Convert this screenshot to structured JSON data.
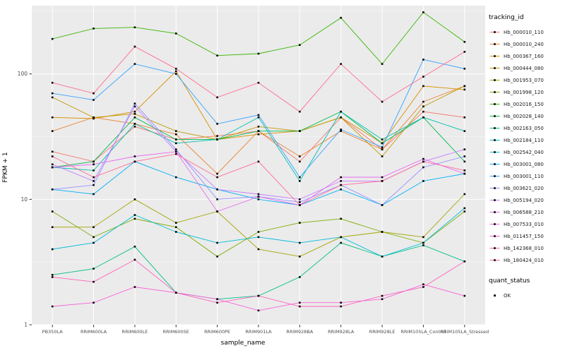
{
  "chart_data": {
    "type": "line",
    "title": "",
    "xlabel": "sample_name",
    "ylabel": "FPKM + 1",
    "legend_title": "tracking_id",
    "quant_legend": {
      "title": "quant_status",
      "items": [
        "OK"
      ]
    },
    "y_scale": "log10",
    "y_ticks": [
      1,
      10,
      100
    ],
    "y_tick_labels": [
      "1",
      "10",
      "100"
    ],
    "ylim": [
      1,
      350
    ],
    "grid": true,
    "legend_position": "right",
    "point_marker": "black-square",
    "panel_background": "#EBEBEB",
    "grid_color": "#FFFFFF",
    "categories": [
      "PB350LA",
      "RRIM600LA",
      "RRIM600LE",
      "RRIM600SE",
      "RRIM600PE",
      "RRIM901LA",
      "RRIM928BA",
      "RRIM928LA",
      "RRIM928LE",
      "RRIM105LA_Control",
      "RRIM105LA_Stressed"
    ],
    "series": [
      {
        "name": "Hb_000010_110",
        "color": "#F8766D",
        "values": [
          24,
          20,
          38,
          30,
          32,
          35,
          20,
          45,
          25,
          50,
          45
        ]
      },
      {
        "name": "Hb_000010_240",
        "color": "#EA8331",
        "values": [
          35,
          45,
          40,
          33,
          16,
          35,
          22,
          35,
          25,
          60,
          80
        ]
      },
      {
        "name": "Hb_000367_160",
        "color": "#D89000",
        "values": [
          45,
          44,
          50,
          105,
          30,
          33,
          35,
          45,
          28,
          80,
          75
        ]
      },
      {
        "name": "Hb_000444_080",
        "color": "#C09B00",
        "values": [
          65,
          45,
          48,
          35,
          30,
          38,
          35,
          45,
          22,
          55,
          80
        ]
      },
      {
        "name": "Hb_001953_070",
        "color": "#A3A500",
        "values": [
          6,
          6,
          10,
          6.5,
          8,
          4,
          3.5,
          5,
          5.5,
          5,
          11
        ]
      },
      {
        "name": "Hb_001998_120",
        "color": "#7CAE00",
        "values": [
          8,
          5,
          7,
          6,
          3.5,
          5.5,
          6.5,
          7,
          5.5,
          4.5,
          8
        ]
      },
      {
        "name": "Hb_002016_150",
        "color": "#39B600",
        "values": [
          190,
          230,
          235,
          210,
          140,
          145,
          170,
          280,
          120,
          310,
          180
        ]
      },
      {
        "name": "Hb_002028_140",
        "color": "#00BB4E",
        "values": [
          18,
          20,
          45,
          30,
          30,
          35,
          35,
          50,
          28,
          45,
          20
        ]
      },
      {
        "name": "Hb_002163_050",
        "color": "#00C087",
        "values": [
          2.5,
          2.8,
          4.2,
          1.8,
          1.6,
          1.7,
          2.4,
          4.5,
          3.5,
          4.3,
          3.2
        ]
      },
      {
        "name": "Hb_002184_110",
        "color": "#00C0AF",
        "values": [
          18,
          17,
          40,
          28,
          30,
          45,
          14,
          50,
          30,
          45,
          35
        ]
      },
      {
        "name": "Hb_002542_040",
        "color": "#00BCD8",
        "values": [
          4,
          4.5,
          7.5,
          5.5,
          4.5,
          5,
          4.5,
          5,
          3.5,
          4.5,
          8.5
        ]
      },
      {
        "name": "Hb_003001_080",
        "color": "#00B0F6",
        "values": [
          12,
          11,
          20,
          15,
          12,
          10,
          9,
          12,
          9,
          14,
          16
        ]
      },
      {
        "name": "Hb_003001_110",
        "color": "#35A2FF",
        "values": [
          70,
          62,
          120,
          100,
          40,
          47,
          15,
          36,
          26,
          130,
          110
        ]
      },
      {
        "name": "Hb_003621_020",
        "color": "#9590FF",
        "values": [
          12,
          13,
          58,
          25,
          10,
          10.5,
          9.5,
          13,
          9,
          18,
          22
        ]
      },
      {
        "name": "Hb_005194_020",
        "color": "#C77CFF",
        "values": [
          19,
          14,
          55,
          24,
          12,
          11,
          10,
          14,
          14,
          20,
          25
        ]
      },
      {
        "name": "Hb_006588_210",
        "color": "#E76BF3",
        "values": [
          18,
          19,
          22,
          24,
          8,
          10.5,
          9,
          15,
          15,
          21,
          16
        ]
      },
      {
        "name": "Hb_007533_010",
        "color": "#FA62DB",
        "values": [
          1.4,
          1.5,
          2.0,
          1.8,
          1.6,
          1.3,
          1.5,
          1.5,
          1.6,
          2.1,
          1.7
        ]
      },
      {
        "name": "Hb_011457_150",
        "color": "#FF62BC",
        "values": [
          2.4,
          2.2,
          3.3,
          1.8,
          1.5,
          1.7,
          1.4,
          1.4,
          1.7,
          2.0,
          3.2
        ]
      },
      {
        "name": "Hb_142368_010",
        "color": "#FF6A98",
        "values": [
          22,
          15,
          20,
          23,
          15,
          20,
          9,
          13,
          14,
          20,
          17
        ]
      },
      {
        "name": "Hb_180424_010",
        "color": "#FF6C91",
        "values": [
          85,
          70,
          165,
          110,
          65,
          85,
          50,
          120,
          60,
          95,
          150
        ]
      }
    ]
  }
}
